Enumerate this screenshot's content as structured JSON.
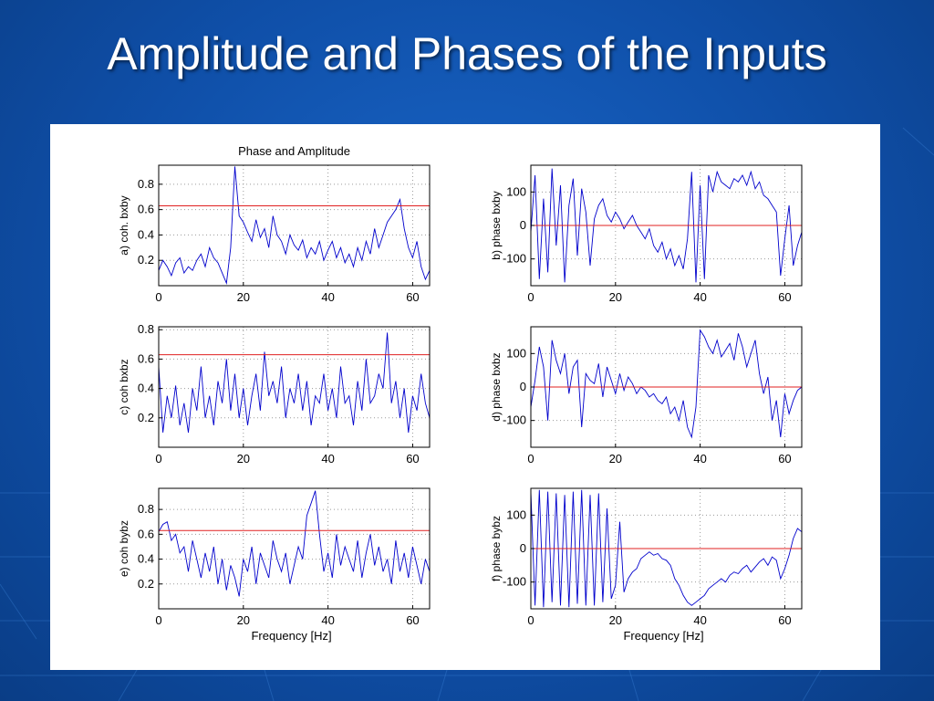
{
  "slide": {
    "title": "Amplitude and Phases of the Inputs"
  },
  "colors": {
    "background": "#1258b8",
    "series": "#0000cc",
    "threshold": "#e02020",
    "grid": "#9a9a9a"
  },
  "chart_data": [
    {
      "id": "a",
      "type": "line",
      "title": "Phase and Amplitude",
      "ylabel": "a) coh. bxby",
      "xlabel": "",
      "xlim": [
        0,
        64
      ],
      "ylim": [
        0,
        0.95
      ],
      "xticks": [
        0,
        20,
        40,
        60
      ],
      "yticks": [
        0.2,
        0.4,
        0.6,
        0.8
      ],
      "grid": true,
      "threshold": 0.63,
      "series": [
        {
          "x": [
            0,
            1,
            2,
            3,
            4,
            5,
            6,
            7,
            8,
            9,
            10,
            11,
            12,
            13,
            14,
            15,
            16,
            17,
            18,
            19,
            20,
            21,
            22,
            23,
            24,
            25,
            26,
            27,
            28,
            29,
            30,
            31,
            32,
            33,
            34,
            35,
            36,
            37,
            38,
            39,
            40,
            41,
            42,
            43,
            44,
            45,
            46,
            47,
            48,
            49,
            50,
            51,
            52,
            53,
            54,
            55,
            56,
            57,
            58,
            59,
            60,
            61,
            62,
            63,
            64
          ],
          "values": [
            0.12,
            0.2,
            0.15,
            0.08,
            0.18,
            0.22,
            0.1,
            0.15,
            0.12,
            0.2,
            0.25,
            0.15,
            0.3,
            0.22,
            0.18,
            0.1,
            0.02,
            0.3,
            0.94,
            0.55,
            0.5,
            0.42,
            0.35,
            0.52,
            0.38,
            0.45,
            0.3,
            0.55,
            0.4,
            0.35,
            0.25,
            0.4,
            0.32,
            0.28,
            0.36,
            0.22,
            0.3,
            0.25,
            0.35,
            0.2,
            0.28,
            0.35,
            0.22,
            0.3,
            0.18,
            0.25,
            0.15,
            0.3,
            0.2,
            0.35,
            0.25,
            0.45,
            0.3,
            0.4,
            0.5,
            0.55,
            0.6,
            0.68,
            0.45,
            0.3,
            0.22,
            0.35,
            0.15,
            0.05,
            0.12
          ]
        }
      ]
    },
    {
      "id": "b",
      "type": "line",
      "title": "",
      "ylabel": "b) phase bxby",
      "xlabel": "",
      "xlim": [
        0,
        64
      ],
      "ylim": [
        -180,
        180
      ],
      "xticks": [
        0,
        20,
        40,
        60
      ],
      "yticks": [
        -100,
        0,
        100
      ],
      "grid": true,
      "threshold": 0,
      "series": [
        {
          "x": [
            0,
            1,
            2,
            3,
            4,
            5,
            6,
            7,
            8,
            9,
            10,
            11,
            12,
            13,
            14,
            15,
            16,
            17,
            18,
            19,
            20,
            21,
            22,
            23,
            24,
            25,
            26,
            27,
            28,
            29,
            30,
            31,
            32,
            33,
            34,
            35,
            36,
            37,
            38,
            39,
            40,
            41,
            42,
            43,
            44,
            45,
            46,
            47,
            48,
            49,
            50,
            51,
            52,
            53,
            54,
            55,
            56,
            57,
            58,
            59,
            60,
            61,
            62,
            63,
            64
          ],
          "values": [
            -20,
            150,
            -160,
            80,
            -140,
            170,
            -60,
            120,
            -170,
            60,
            140,
            -90,
            110,
            40,
            -120,
            20,
            60,
            80,
            30,
            10,
            40,
            20,
            -10,
            10,
            30,
            0,
            -20,
            -40,
            -10,
            -60,
            -80,
            -50,
            -100,
            -70,
            -120,
            -90,
            -130,
            -40,
            160,
            -170,
            120,
            -160,
            150,
            100,
            160,
            130,
            120,
            110,
            140,
            130,
            150,
            120,
            160,
            110,
            130,
            90,
            80,
            60,
            40,
            -150,
            -40,
            60,
            -120,
            -60,
            -20
          ]
        }
      ]
    },
    {
      "id": "c",
      "type": "line",
      "title": "",
      "ylabel": "c) coh bxbz",
      "xlabel": "",
      "xlim": [
        0,
        64
      ],
      "ylim": [
        0,
        0.82
      ],
      "xticks": [
        0,
        20,
        40,
        60
      ],
      "yticks": [
        0.2,
        0.4,
        0.6,
        0.8
      ],
      "grid": true,
      "threshold": 0.63,
      "series": [
        {
          "x": [
            0,
            1,
            2,
            3,
            4,
            5,
            6,
            7,
            8,
            9,
            10,
            11,
            12,
            13,
            14,
            15,
            16,
            17,
            18,
            19,
            20,
            21,
            22,
            23,
            24,
            25,
            26,
            27,
            28,
            29,
            30,
            31,
            32,
            33,
            34,
            35,
            36,
            37,
            38,
            39,
            40,
            41,
            42,
            43,
            44,
            45,
            46,
            47,
            48,
            49,
            50,
            51,
            52,
            53,
            54,
            55,
            56,
            57,
            58,
            59,
            60,
            61,
            62,
            63,
            64
          ],
          "values": [
            0.55,
            0.1,
            0.35,
            0.2,
            0.42,
            0.15,
            0.3,
            0.1,
            0.4,
            0.25,
            0.55,
            0.2,
            0.35,
            0.15,
            0.45,
            0.3,
            0.6,
            0.25,
            0.5,
            0.2,
            0.4,
            0.15,
            0.35,
            0.5,
            0.25,
            0.65,
            0.35,
            0.45,
            0.3,
            0.55,
            0.2,
            0.4,
            0.3,
            0.5,
            0.25,
            0.45,
            0.15,
            0.35,
            0.3,
            0.5,
            0.25,
            0.4,
            0.2,
            0.55,
            0.3,
            0.35,
            0.15,
            0.45,
            0.25,
            0.6,
            0.3,
            0.35,
            0.5,
            0.4,
            0.78,
            0.3,
            0.45,
            0.2,
            0.4,
            0.1,
            0.35,
            0.25,
            0.5,
            0.3,
            0.2
          ]
        }
      ]
    },
    {
      "id": "d",
      "type": "line",
      "title": "",
      "ylabel": "d) phase bxbz",
      "xlabel": "",
      "xlim": [
        0,
        64
      ],
      "ylim": [
        -180,
        180
      ],
      "xticks": [
        0,
        20,
        40,
        60
      ],
      "yticks": [
        -100,
        0,
        100
      ],
      "grid": true,
      "threshold": 0,
      "series": [
        {
          "x": [
            0,
            1,
            2,
            3,
            4,
            5,
            6,
            7,
            8,
            9,
            10,
            11,
            12,
            13,
            14,
            15,
            16,
            17,
            18,
            19,
            20,
            21,
            22,
            23,
            24,
            25,
            26,
            27,
            28,
            29,
            30,
            31,
            32,
            33,
            34,
            35,
            36,
            37,
            38,
            39,
            40,
            41,
            42,
            43,
            44,
            45,
            46,
            47,
            48,
            49,
            50,
            51,
            52,
            53,
            54,
            55,
            56,
            57,
            58,
            59,
            60,
            61,
            62,
            63,
            64
          ],
          "values": [
            -60,
            20,
            120,
            60,
            -100,
            140,
            80,
            40,
            100,
            -20,
            60,
            80,
            -120,
            40,
            20,
            10,
            70,
            -30,
            60,
            20,
            -20,
            40,
            -10,
            30,
            10,
            -20,
            0,
            -10,
            -30,
            -20,
            -40,
            -50,
            -30,
            -80,
            -60,
            -100,
            -40,
            -120,
            -150,
            -60,
            170,
            150,
            120,
            100,
            140,
            90,
            110,
            130,
            80,
            160,
            120,
            60,
            100,
            140,
            40,
            -20,
            30,
            -100,
            -40,
            -150,
            -20,
            -80,
            -40,
            -10,
            0
          ]
        }
      ]
    },
    {
      "id": "e",
      "type": "line",
      "title": "",
      "ylabel": "e) coh bybz",
      "xlabel": "Frequency [Hz]",
      "xlim": [
        0,
        64
      ],
      "ylim": [
        0,
        0.97
      ],
      "xticks": [
        0,
        20,
        40,
        60
      ],
      "yticks": [
        0.2,
        0.4,
        0.6,
        0.8
      ],
      "grid": true,
      "threshold": 0.63,
      "series": [
        {
          "x": [
            0,
            1,
            2,
            3,
            4,
            5,
            6,
            7,
            8,
            9,
            10,
            11,
            12,
            13,
            14,
            15,
            16,
            17,
            18,
            19,
            20,
            21,
            22,
            23,
            24,
            25,
            26,
            27,
            28,
            29,
            30,
            31,
            32,
            33,
            34,
            35,
            36,
            37,
            38,
            39,
            40,
            41,
            42,
            43,
            44,
            45,
            46,
            47,
            48,
            49,
            50,
            51,
            52,
            53,
            54,
            55,
            56,
            57,
            58,
            59,
            60,
            61,
            62,
            63,
            64
          ],
          "values": [
            0.62,
            0.68,
            0.7,
            0.55,
            0.6,
            0.45,
            0.5,
            0.3,
            0.55,
            0.4,
            0.25,
            0.45,
            0.3,
            0.5,
            0.2,
            0.4,
            0.15,
            0.35,
            0.25,
            0.1,
            0.4,
            0.3,
            0.5,
            0.2,
            0.45,
            0.35,
            0.25,
            0.55,
            0.4,
            0.3,
            0.45,
            0.2,
            0.35,
            0.5,
            0.4,
            0.75,
            0.85,
            0.95,
            0.6,
            0.3,
            0.45,
            0.25,
            0.6,
            0.35,
            0.5,
            0.4,
            0.3,
            0.55,
            0.25,
            0.45,
            0.6,
            0.35,
            0.5,
            0.3,
            0.4,
            0.2,
            0.55,
            0.3,
            0.45,
            0.25,
            0.5,
            0.35,
            0.2,
            0.4,
            0.3
          ]
        }
      ]
    },
    {
      "id": "f",
      "type": "line",
      "title": "",
      "ylabel": "f) phase bybz",
      "xlabel": "Frequency [Hz]",
      "xlim": [
        0,
        64
      ],
      "ylim": [
        -180,
        180
      ],
      "xticks": [
        0,
        20,
        40,
        60
      ],
      "yticks": [
        -100,
        0,
        100
      ],
      "grid": true,
      "threshold": 0,
      "series": [
        {
          "x": [
            0,
            1,
            2,
            3,
            4,
            5,
            6,
            7,
            8,
            9,
            10,
            11,
            12,
            13,
            14,
            15,
            16,
            17,
            18,
            19,
            20,
            21,
            22,
            23,
            24,
            25,
            26,
            27,
            28,
            29,
            30,
            31,
            32,
            33,
            34,
            35,
            36,
            37,
            38,
            39,
            40,
            41,
            42,
            43,
            44,
            45,
            46,
            47,
            48,
            49,
            50,
            51,
            52,
            53,
            54,
            55,
            56,
            57,
            58,
            59,
            60,
            61,
            62,
            63,
            64
          ],
          "values": [
            170,
            -170,
            175,
            -175,
            170,
            -160,
            165,
            -170,
            160,
            -175,
            170,
            -165,
            175,
            -170,
            160,
            -170,
            165,
            -160,
            120,
            -150,
            -110,
            80,
            -130,
            -90,
            -70,
            -60,
            -30,
            -20,
            -10,
            -20,
            -15,
            -30,
            -35,
            -50,
            -90,
            -110,
            -140,
            -160,
            -170,
            -160,
            -150,
            -140,
            -120,
            -110,
            -100,
            -90,
            -100,
            -80,
            -70,
            -75,
            -60,
            -50,
            -70,
            -55,
            -40,
            -30,
            -50,
            -25,
            -35,
            -90,
            -60,
            -20,
            30,
            60,
            50
          ]
        }
      ]
    }
  ]
}
